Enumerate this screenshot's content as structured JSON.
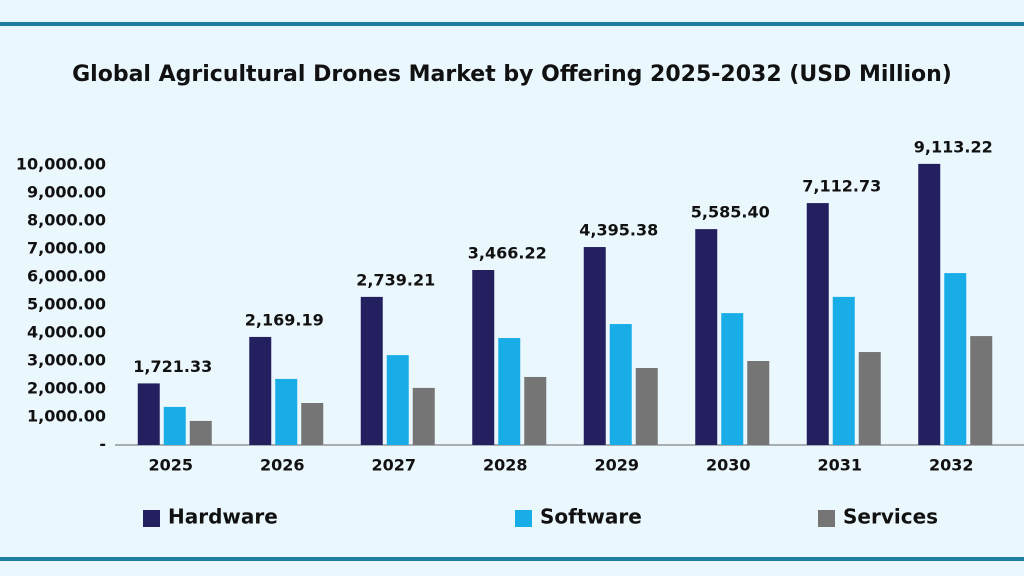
{
  "chart_data": {
    "type": "bar",
    "title": "Global Agricultural Drones Market by Offering 2025-2032 (USD Million)",
    "categories": [
      "2025",
      "2026",
      "2027",
      "2028",
      "2029",
      "2030",
      "2031",
      "2032"
    ],
    "series": [
      {
        "name": "Hardware",
        "color": "#24205f",
        "values": [
          2200,
          3860,
          5290,
          6250,
          7070,
          7710,
          8640,
          10040
        ]
      },
      {
        "name": "Software",
        "color": "#19ade8",
        "values": [
          1360,
          2360,
          3210,
          3820,
          4320,
          4710,
          5290,
          6140
        ]
      },
      {
        "name": "Services",
        "color": "#757575",
        "values": [
          860,
          1500,
          2040,
          2430,
          2750,
          3000,
          3320,
          3890
        ]
      }
    ],
    "annotations": [
      "1,721.33",
      "2,169.19",
      "2,739.21",
      "3,466.22",
      "4,395.38",
      "5,585.40",
      "7,112.73",
      "9,113.22"
    ],
    "ylim": [
      0,
      10500
    ],
    "yticks": [
      {
        "value": 0,
        "label": "-"
      },
      {
        "value": 1000,
        "label": "1,000.00"
      },
      {
        "value": 2000,
        "label": "2,000.00"
      },
      {
        "value": 3000,
        "label": "3,000.00"
      },
      {
        "value": 4000,
        "label": "4,000.00"
      },
      {
        "value": 5000,
        "label": "5,000.00"
      },
      {
        "value": 6000,
        "label": "6,000.00"
      },
      {
        "value": 7000,
        "label": "7,000.00"
      },
      {
        "value": 8000,
        "label": "8,000.00"
      },
      {
        "value": 9000,
        "label": "9,000.00"
      },
      {
        "value": 10000,
        "label": "10,000.00"
      }
    ],
    "grid": false
  }
}
